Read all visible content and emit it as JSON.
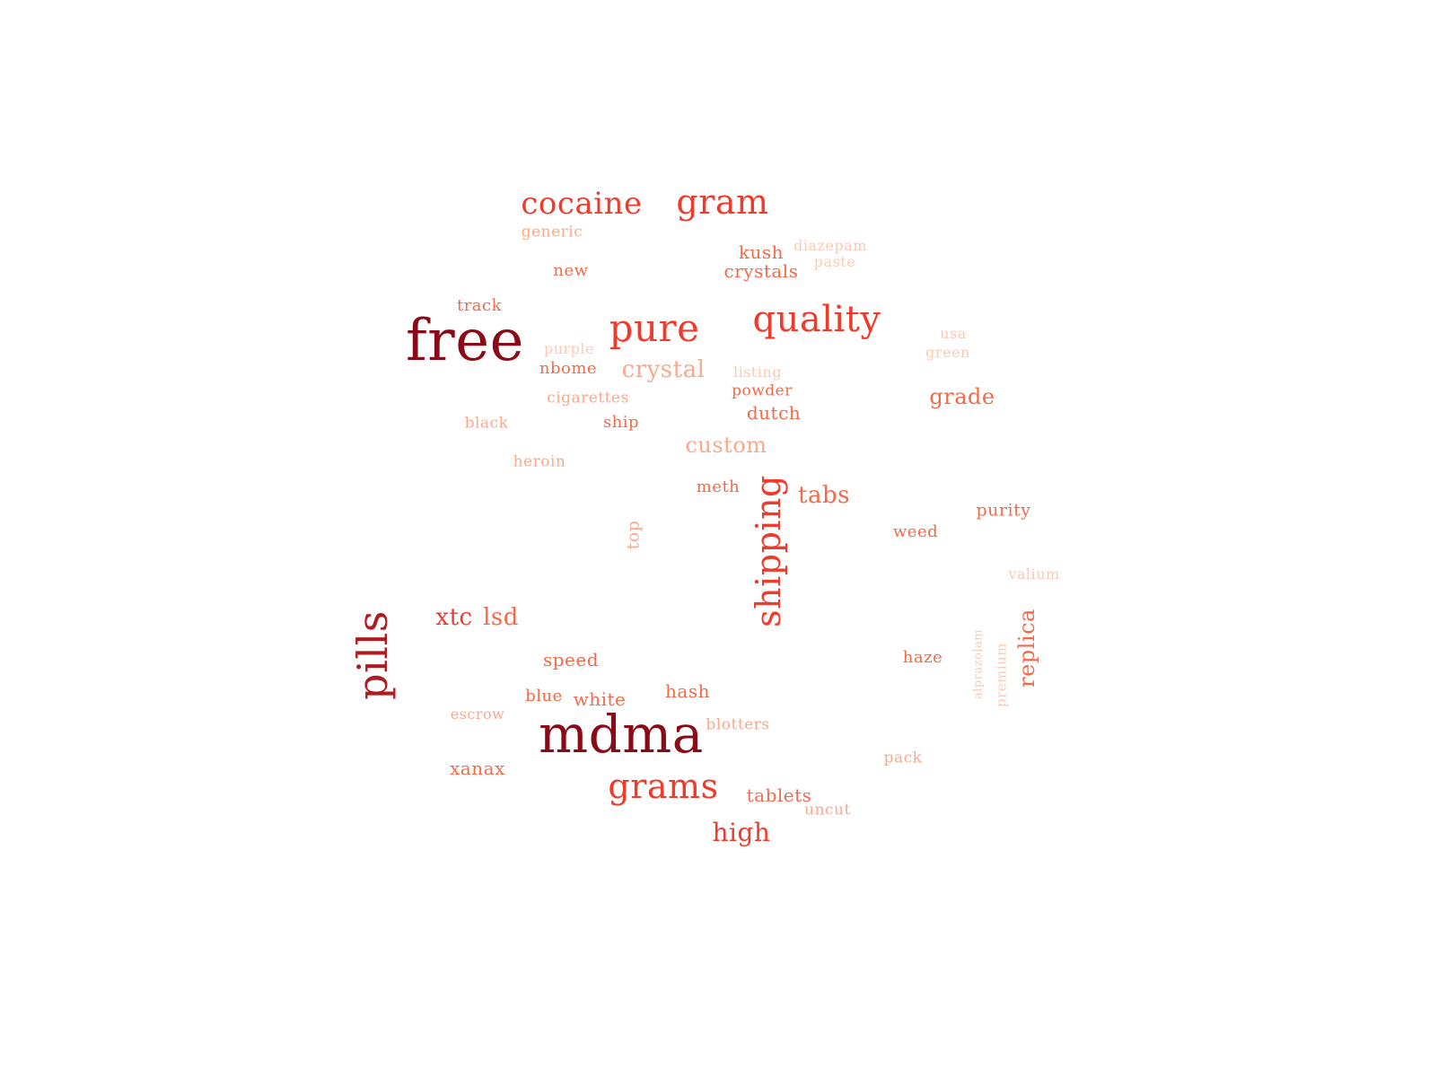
{
  "word_cloud": {
    "colors": {
      "darkest": "#8b0a17",
      "dark": "#b01b22",
      "strong": "#ef3b2c",
      "medium": "#f26a4a",
      "light": "#f9a98c",
      "pale": "#fcc9b3",
      "palest": "#fde0d3"
    },
    "words": [
      {
        "text": "free",
        "weight": 1.0,
        "tier": "darkest"
      },
      {
        "text": "mdma",
        "weight": 0.96,
        "tier": "darkest"
      },
      {
        "text": "pills",
        "weight": 0.7,
        "tier": "dark"
      },
      {
        "text": "shipping",
        "weight": 0.55,
        "tier": "strong"
      },
      {
        "text": "quality",
        "weight": 0.55,
        "tier": "strong"
      },
      {
        "text": "pure",
        "weight": 0.55,
        "tier": "strong"
      },
      {
        "text": "grams",
        "weight": 0.52,
        "tier": "strong"
      },
      {
        "text": "gram",
        "weight": 0.5,
        "tier": "strong"
      },
      {
        "text": "cocaine",
        "weight": 0.48,
        "tier": "strong"
      },
      {
        "text": "high",
        "weight": 0.4,
        "tier": "strong"
      },
      {
        "text": "replica",
        "weight": 0.32,
        "tier": "medium"
      },
      {
        "text": "xtc",
        "weight": 0.32,
        "tier": "strong"
      },
      {
        "text": "lsd",
        "weight": 0.32,
        "tier": "medium"
      },
      {
        "text": "tabs",
        "weight": 0.32,
        "tier": "medium"
      },
      {
        "text": "crystal",
        "weight": 0.32,
        "tier": "light"
      },
      {
        "text": "grade",
        "weight": 0.3,
        "tier": "medium"
      },
      {
        "text": "custom",
        "weight": 0.3,
        "tier": "light"
      },
      {
        "text": "tablets",
        "weight": 0.26,
        "tier": "medium"
      },
      {
        "text": "hash",
        "weight": 0.26,
        "tier": "medium"
      },
      {
        "text": "xanax",
        "weight": 0.26,
        "tier": "medium"
      },
      {
        "text": "dutch",
        "weight": 0.26,
        "tier": "medium"
      },
      {
        "text": "crystals",
        "weight": 0.26,
        "tier": "medium"
      },
      {
        "text": "kush",
        "weight": 0.26,
        "tier": "medium"
      },
      {
        "text": "speed",
        "weight": 0.26,
        "tier": "medium"
      },
      {
        "text": "white",
        "weight": 0.26,
        "tier": "medium"
      },
      {
        "text": "blue",
        "weight": 0.24,
        "tier": "medium"
      },
      {
        "text": "purity",
        "weight": 0.24,
        "tier": "medium"
      },
      {
        "text": "weed",
        "weight": 0.24,
        "tier": "medium"
      },
      {
        "text": "haze",
        "weight": 0.24,
        "tier": "medium"
      },
      {
        "text": "meth",
        "weight": 0.24,
        "tier": "medium"
      },
      {
        "text": "ship",
        "weight": 0.24,
        "tier": "medium"
      },
      {
        "text": "nbome",
        "weight": 0.24,
        "tier": "medium"
      },
      {
        "text": "new",
        "weight": 0.24,
        "tier": "medium"
      },
      {
        "text": "track",
        "weight": 0.24,
        "tier": "medium"
      },
      {
        "text": "top",
        "weight": 0.24,
        "tier": "light"
      },
      {
        "text": "powder",
        "weight": 0.24,
        "tier": "medium"
      },
      {
        "text": "blotters",
        "weight": 0.24,
        "tier": "light"
      },
      {
        "text": "uncut",
        "weight": 0.24,
        "tier": "light"
      },
      {
        "text": "pack",
        "weight": 0.24,
        "tier": "light"
      },
      {
        "text": "escrow",
        "weight": 0.24,
        "tier": "light"
      },
      {
        "text": "heroin",
        "weight": 0.24,
        "tier": "light"
      },
      {
        "text": "black",
        "weight": 0.24,
        "tier": "light"
      },
      {
        "text": "cigarettes",
        "weight": 0.24,
        "tier": "light"
      },
      {
        "text": "generic",
        "weight": 0.24,
        "tier": "light"
      },
      {
        "text": "purple",
        "weight": 0.24,
        "tier": "light"
      },
      {
        "text": "listing",
        "weight": 0.24,
        "tier": "light"
      },
      {
        "text": "paste",
        "weight": 0.24,
        "tier": "light"
      },
      {
        "text": "diazepam",
        "weight": 0.24,
        "tier": "light"
      },
      {
        "text": "usa",
        "weight": 0.24,
        "tier": "light"
      },
      {
        "text": "green",
        "weight": 0.24,
        "tier": "light"
      },
      {
        "text": "valium",
        "weight": 0.24,
        "tier": "light"
      },
      {
        "text": "alprazolam",
        "weight": 0.22,
        "tier": "light"
      },
      {
        "text": "premium",
        "weight": 0.22,
        "tier": "light"
      }
    ]
  }
}
